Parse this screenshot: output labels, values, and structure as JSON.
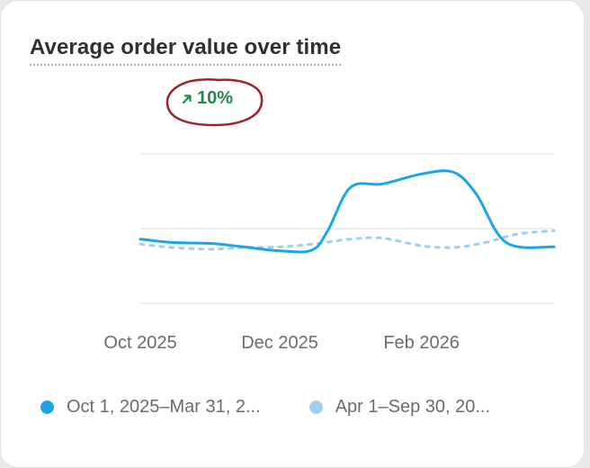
{
  "card": {
    "title": "Average order value over time",
    "delta": {
      "direction": "up",
      "value": "10%",
      "color": "#1f8a4c",
      "icon": "arrow-up-right-icon"
    }
  },
  "annotation": {
    "color": "#a3202e"
  },
  "legend": {
    "items": [
      {
        "label": "Oct 1, 2025–Mar 31, 2...",
        "color": "#1aa6e6"
      },
      {
        "label": "Apr 1–Sep 30, 20...",
        "color": "#9cd0ee"
      }
    ]
  },
  "chart_data": {
    "type": "line",
    "title": "Average order value over time",
    "xlabel": "",
    "ylabel": "",
    "x_ticks": [
      "Oct 2025",
      "Dec 2025",
      "Feb 2026"
    ],
    "grid": true,
    "y_axis_labels_shown": false,
    "series": [
      {
        "name": "Oct 1, 2025–Mar 31, 2...",
        "style": "solid",
        "color": "#1aa6e6",
        "x": [
          "2025-10-01",
          "2025-10-15",
          "2025-11-01",
          "2025-11-15",
          "2025-12-01",
          "2025-12-15",
          "2025-12-22",
          "2026-01-01",
          "2026-01-15",
          "2026-02-01",
          "2026-02-15",
          "2026-02-25",
          "2026-03-10",
          "2026-03-31"
        ],
        "values": [
          0.95,
          0.85,
          0.82,
          0.72,
          0.6,
          0.62,
          1.2,
          2.5,
          2.6,
          2.9,
          2.95,
          2.3,
          0.85,
          0.72
        ]
      },
      {
        "name": "Apr 1–Sep 30, 20...",
        "style": "dashed",
        "color": "#9cd0ee",
        "x": [
          "2025-10-01",
          "2025-10-15",
          "2025-11-01",
          "2025-11-15",
          "2025-12-01",
          "2025-12-15",
          "2026-01-01",
          "2026-01-15",
          "2026-02-01",
          "2026-02-15",
          "2026-03-01",
          "2026-03-15",
          "2026-03-31"
        ],
        "values": [
          0.8,
          0.7,
          0.65,
          0.7,
          0.72,
          0.8,
          0.95,
          0.98,
          0.75,
          0.7,
          0.85,
          1.1,
          1.2
        ]
      }
    ]
  }
}
